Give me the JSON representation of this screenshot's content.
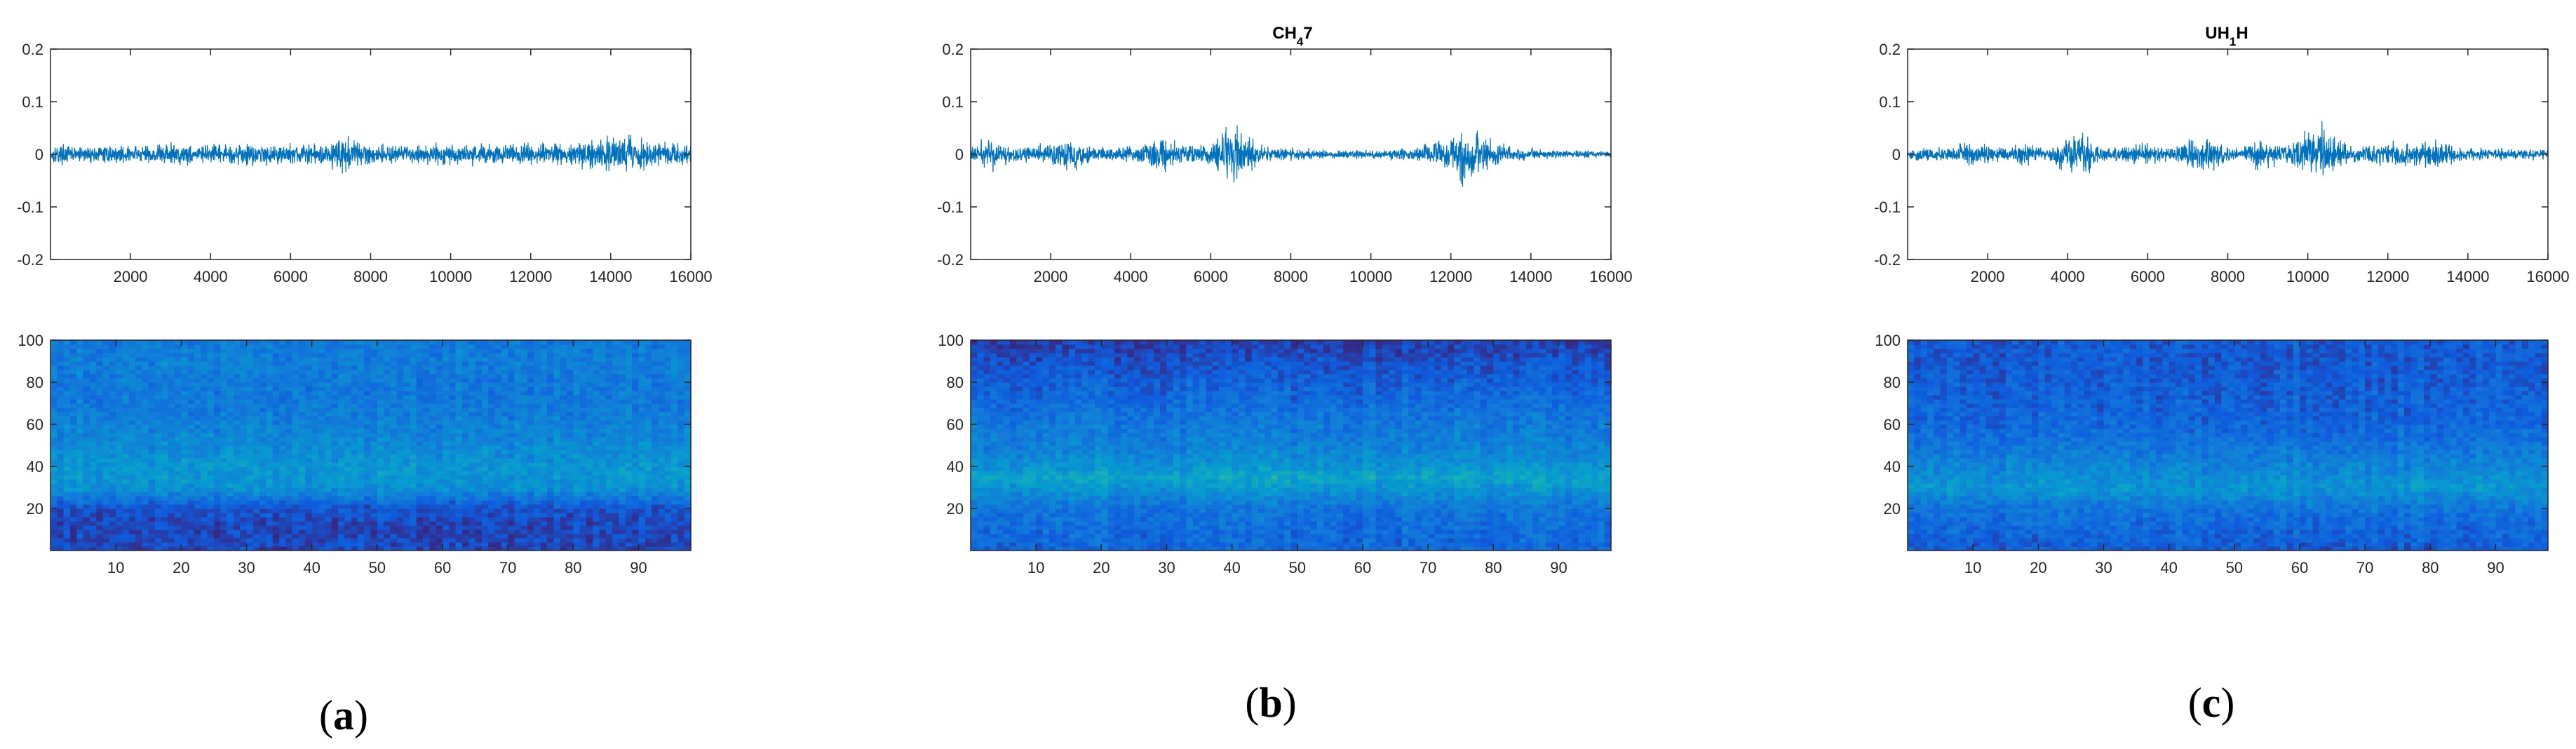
{
  "figure": {
    "panels": [
      {
        "label_open": "(",
        "label_letter": "a",
        "label_close": ")",
        "title_main": "",
        "title_sub": "",
        "title_tail": ""
      },
      {
        "label_open": "(",
        "label_letter": "b",
        "label_close": ")",
        "title_main": "CH",
        "title_sub": "4",
        "title_tail": "7"
      },
      {
        "label_open": "(",
        "label_letter": "c",
        "label_close": ")",
        "title_main": "UH",
        "title_sub": "1",
        "title_tail": "H"
      }
    ]
  },
  "chart_data": [
    {
      "type": "line",
      "panel": "a",
      "title": "",
      "xlabel": "",
      "ylabel": "",
      "xlim": [
        1,
        16000
      ],
      "ylim": [
        -0.2,
        0.2
      ],
      "xticks": [
        2000,
        4000,
        6000,
        8000,
        10000,
        12000,
        14000,
        16000
      ],
      "yticks": [
        0.2,
        0.1,
        0,
        -0.1,
        -0.2
      ],
      "line_color": "#0072BD",
      "envelope": {
        "x": [
          0,
          1000,
          2000,
          3000,
          4000,
          5000,
          6000,
          7000,
          7200,
          8000,
          9000,
          10000,
          11000,
          12000,
          13000,
          14000,
          15000,
          16000
        ],
        "amplitude": [
          0.025,
          0.02,
          0.022,
          0.03,
          0.022,
          0.028,
          0.025,
          0.03,
          0.05,
          0.025,
          0.024,
          0.026,
          0.025,
          0.03,
          0.028,
          0.045,
          0.035,
          0.025
        ]
      }
    },
    {
      "type": "heatmap",
      "panel": "a",
      "title": "",
      "xlim": [
        0,
        98
      ],
      "ylim": [
        0,
        100
      ],
      "xticks": [
        10,
        20,
        30,
        40,
        50,
        60,
        70,
        80,
        90
      ],
      "yticks": [
        100,
        80,
        60,
        40,
        20
      ],
      "colormap": "parula",
      "profile": {
        "y": [
          0,
          10,
          20,
          30,
          40,
          50,
          60,
          70,
          80,
          90,
          100
        ],
        "intensity": [
          0.08,
          0.08,
          0.12,
          0.4,
          0.42,
          0.36,
          0.32,
          0.28,
          0.28,
          0.3,
          0.28
        ]
      }
    },
    {
      "type": "line",
      "panel": "b",
      "title": "CH47",
      "xlabel": "",
      "ylabel": "",
      "xlim": [
        1,
        16000
      ],
      "ylim": [
        -0.2,
        0.2
      ],
      "xticks": [
        2000,
        4000,
        6000,
        8000,
        10000,
        12000,
        14000,
        16000
      ],
      "yticks": [
        0.2,
        0.1,
        0,
        -0.1,
        -0.2
      ],
      "line_color": "#0072BD",
      "envelope": {
        "x": [
          0,
          500,
          1000,
          2000,
          2500,
          3000,
          4000,
          4800,
          5500,
          6000,
          6600,
          7200,
          8000,
          9000,
          10000,
          11000,
          12000,
          12300,
          12800,
          13500,
          14500,
          16000
        ],
        "amplitude": [
          0.02,
          0.04,
          0.02,
          0.025,
          0.04,
          0.02,
          0.02,
          0.045,
          0.02,
          0.03,
          0.08,
          0.025,
          0.015,
          0.012,
          0.012,
          0.015,
          0.04,
          0.085,
          0.045,
          0.02,
          0.01,
          0.008
        ]
      }
    },
    {
      "type": "heatmap",
      "panel": "b",
      "title": "",
      "xlim": [
        0,
        98
      ],
      "ylim": [
        0,
        100
      ],
      "xticks": [
        10,
        20,
        30,
        40,
        50,
        60,
        70,
        80,
        90
      ],
      "yticks": [
        100,
        80,
        60,
        40,
        20
      ],
      "colormap": "parula",
      "profile": {
        "y": [
          0,
          10,
          20,
          30,
          35,
          40,
          50,
          60,
          70,
          80,
          90,
          100
        ],
        "intensity": [
          0.2,
          0.22,
          0.26,
          0.42,
          0.5,
          0.4,
          0.32,
          0.28,
          0.22,
          0.18,
          0.12,
          0.05
        ]
      }
    },
    {
      "type": "line",
      "panel": "c",
      "title": "UH1H",
      "xlabel": "",
      "ylabel": "",
      "xlim": [
        1,
        16000
      ],
      "ylim": [
        -0.2,
        0.2
      ],
      "xticks": [
        2000,
        4000,
        6000,
        8000,
        10000,
        12000,
        14000,
        16000
      ],
      "yticks": [
        0.2,
        0.1,
        0,
        -0.1,
        -0.2
      ],
      "line_color": "#0072BD",
      "envelope": {
        "x": [
          0,
          1200,
          1500,
          2500,
          2900,
          3500,
          4200,
          5000,
          5800,
          6500,
          7400,
          8200,
          8700,
          9500,
          10300,
          11000,
          12000,
          13200,
          14000,
          16000
        ],
        "amplitude": [
          0.015,
          0.02,
          0.03,
          0.015,
          0.035,
          0.015,
          0.06,
          0.015,
          0.03,
          0.015,
          0.045,
          0.015,
          0.035,
          0.02,
          0.075,
          0.02,
          0.03,
          0.035,
          0.015,
          0.012
        ]
      }
    },
    {
      "type": "heatmap",
      "panel": "c",
      "title": "",
      "xlim": [
        0,
        98
      ],
      "ylim": [
        0,
        100
      ],
      "xticks": [
        10,
        20,
        30,
        40,
        50,
        60,
        70,
        80,
        90
      ],
      "yticks": [
        100,
        80,
        60,
        40,
        20
      ],
      "colormap": "parula",
      "profile": {
        "y": [
          0,
          10,
          20,
          30,
          40,
          50,
          60,
          70,
          80,
          90,
          100
        ],
        "intensity": [
          0.15,
          0.2,
          0.26,
          0.42,
          0.34,
          0.26,
          0.2,
          0.18,
          0.16,
          0.15,
          0.15
        ]
      }
    }
  ]
}
